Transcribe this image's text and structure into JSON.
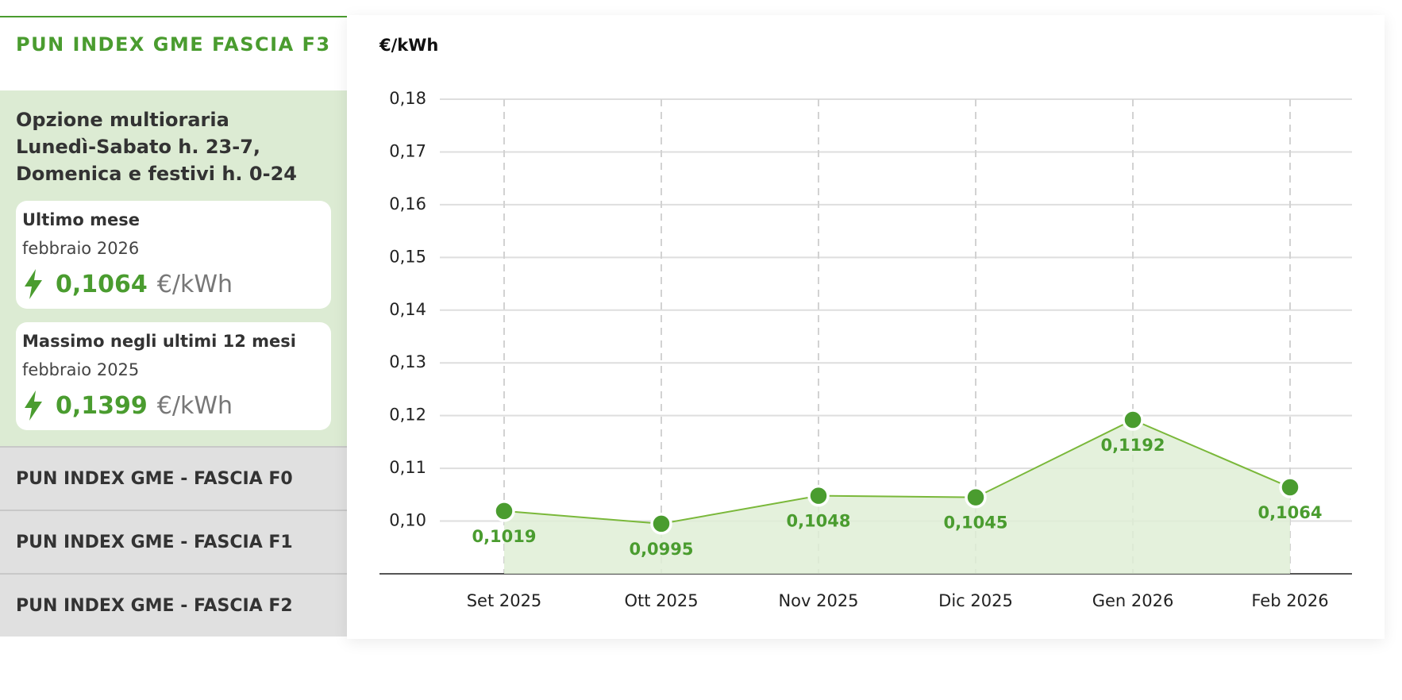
{
  "sidebar": {
    "active": {
      "title": "PUN INDEX GME FASCIA F3",
      "description": [
        "Opzione multioraria",
        "Lunedì-Sabato h. 23-7,",
        "Domenica e festivi h. 0-24"
      ],
      "cards": [
        {
          "label": "Ultimo mese",
          "date": "febbraio 2026",
          "value": "0,1064",
          "unit": "€/kWh"
        },
        {
          "label": "Massimo negli ultimi 12 mesi",
          "date": "febbraio 2025",
          "value": "0,1399",
          "unit": "€/kWh"
        }
      ]
    },
    "items": [
      "PUN INDEX GME - FASCIA F0",
      "PUN INDEX GME - FASCIA F1",
      "PUN INDEX GME - FASCIA F2"
    ]
  },
  "chart_data": {
    "type": "line",
    "unit_label": "€/kWh",
    "categories": [
      "Set 2025",
      "Ott 2025",
      "Nov 2025",
      "Dic 2025",
      "Gen 2026",
      "Feb 2026"
    ],
    "values": [
      0.1019,
      0.0995,
      0.1048,
      0.1045,
      0.1192,
      0.1064
    ],
    "value_labels": [
      "0,1019",
      "0,0995",
      "0,1048",
      "0,1045",
      "0,1192",
      "0,1064"
    ],
    "color": "#4a9c2f",
    "line_color": "#7ab83a",
    "area_color": "#dfeed6",
    "ylim": [
      0.09,
      0.18
    ],
    "yticks": [
      {
        "value": 0.1,
        "label": "0,10"
      },
      {
        "value": 0.11,
        "label": "0,11"
      },
      {
        "value": 0.12,
        "label": "0,12"
      },
      {
        "value": 0.13,
        "label": "0,13"
      },
      {
        "value": 0.14,
        "label": "0,14"
      },
      {
        "value": 0.15,
        "label": "0,15"
      },
      {
        "value": 0.16,
        "label": "0,16"
      },
      {
        "value": 0.17,
        "label": "0,17"
      },
      {
        "value": 0.18,
        "label": "0,18"
      }
    ],
    "grid": true
  }
}
